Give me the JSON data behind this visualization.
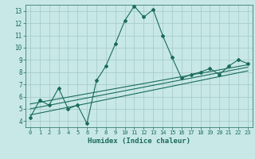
{
  "xlabel": "Humidex (Indice chaleur)",
  "bg_color": "#c8e8e8",
  "grid_color": "#aacccc",
  "line_color": "#1a6b5a",
  "xlim": [
    -0.5,
    23.5
  ],
  "ylim": [
    3.5,
    13.5
  ],
  "xticks": [
    0,
    1,
    2,
    3,
    4,
    5,
    6,
    7,
    8,
    9,
    10,
    11,
    12,
    13,
    14,
    15,
    16,
    17,
    18,
    19,
    20,
    21,
    22,
    23
  ],
  "yticks": [
    4,
    5,
    6,
    7,
    8,
    9,
    10,
    11,
    12,
    13
  ],
  "curve1_x": [
    0,
    1,
    2,
    3,
    4,
    5,
    6,
    7,
    8,
    9,
    10,
    11,
    12,
    13,
    14,
    15,
    16,
    17,
    18,
    19,
    20,
    21,
    22,
    23
  ],
  "curve1_y": [
    4.3,
    5.7,
    5.3,
    6.7,
    5.0,
    5.3,
    3.8,
    7.3,
    8.5,
    10.3,
    12.2,
    13.4,
    12.5,
    13.1,
    11.0,
    9.2,
    7.5,
    7.8,
    8.0,
    8.3,
    7.8,
    8.5,
    9.0,
    8.7
  ],
  "line2_x": [
    0,
    23
  ],
  "line2_y": [
    4.5,
    8.1
  ],
  "line3_x": [
    0,
    23
  ],
  "line3_y": [
    5.0,
    8.4
  ],
  "line4_x": [
    0,
    23
  ],
  "line4_y": [
    5.4,
    8.6
  ]
}
